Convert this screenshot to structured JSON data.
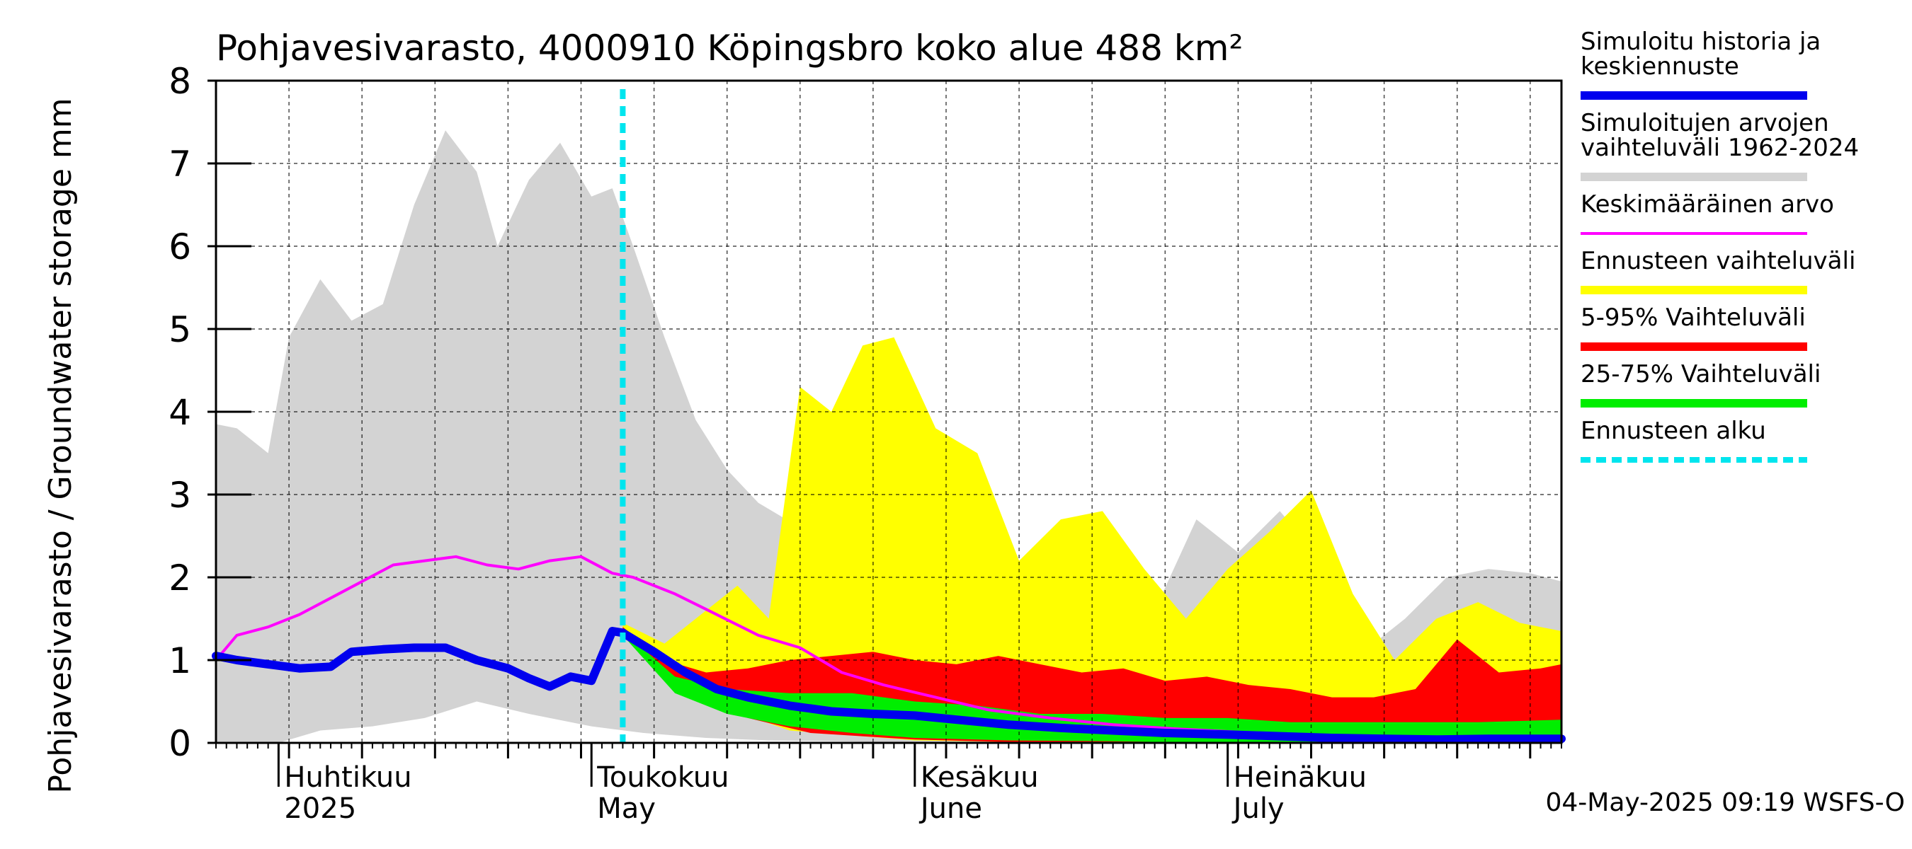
{
  "chart_data": {
    "type": "area",
    "title": "Pohjavesivarasto, 4000910 Köpingsbro koko alue 488 km²",
    "ylabel": "Pohjavesivarasto / Groundwater storage   mm",
    "ylim": [
      0,
      8
    ],
    "yticks": [
      "0",
      "1",
      "2",
      "3",
      "4",
      "5",
      "6",
      "7",
      "8"
    ],
    "grid": true,
    "legend_position": "right",
    "footer": "04-May-2025 09:19 WSFS-O",
    "colors": {
      "history": "#0000ee",
      "range_hist": "#d3d3d3",
      "mean": "#ff00ff",
      "forecast_range": "#ffff00",
      "p5_95": "#ff0000",
      "p25_75": "#00ee00",
      "forecast_start": "#00e5ee"
    },
    "x_months": [
      {
        "label": "Huhtikuu",
        "sublabel": "2025",
        "date": "2025-04-01"
      },
      {
        "label": "Toukokuu",
        "sublabel": "May",
        "date": "2025-05-01"
      },
      {
        "label": "Kesäkuu",
        "sublabel": "June",
        "date": "2025-06-01"
      },
      {
        "label": "Heinäkuu",
        "sublabel": "July",
        "date": "2025-07-01"
      }
    ],
    "x_start": "2025-03-26",
    "x_end": "2025-08-02",
    "forecast_start_date": "2025-05-04",
    "legend": [
      {
        "label": "Simuloitu historia ja keskiennuste",
        "key": "history",
        "style": "thick"
      },
      {
        "label": "Simuloitujen arvojen vaihteluväli 1962-2024",
        "key": "range_hist",
        "style": "thick"
      },
      {
        "label": "Keskimääräinen arvo",
        "key": "mean",
        "style": "thin"
      },
      {
        "label": "Ennusteen vaihteluväli",
        "key": "forecast_range",
        "style": "thick"
      },
      {
        "label": "5-95% Vaihteluväli",
        "key": "p5_95",
        "style": "thick"
      },
      {
        "label": "25-75% Vaihteluväli",
        "key": "p25_75",
        "style": "thick"
      },
      {
        "label": "Ennusteen alku",
        "key": "forecast_start",
        "style": "dashed"
      }
    ],
    "series": {
      "history": {
        "x": [
          "2025-03-26",
          "2025-03-28",
          "2025-03-31",
          "2025-04-03",
          "2025-04-06",
          "2025-04-08",
          "2025-04-11",
          "2025-04-14",
          "2025-04-17",
          "2025-04-20",
          "2025-04-23",
          "2025-04-25",
          "2025-04-27",
          "2025-04-29",
          "2025-05-01",
          "2025-05-03",
          "2025-05-04"
        ],
        "y": [
          1.05,
          1.0,
          0.95,
          0.9,
          0.92,
          1.1,
          1.13,
          1.15,
          1.15,
          1.0,
          0.9,
          0.78,
          0.68,
          0.8,
          0.75,
          1.35,
          1.33
        ]
      },
      "median_forecast": {
        "x": [
          "2025-05-04",
          "2025-05-07",
          "2025-05-10",
          "2025-05-13",
          "2025-05-16",
          "2025-05-20",
          "2025-05-24",
          "2025-05-28",
          "2025-06-01",
          "2025-06-05",
          "2025-06-10",
          "2025-06-15",
          "2025-06-20",
          "2025-06-25",
          "2025-07-01",
          "2025-07-06",
          "2025-07-11",
          "2025-07-16",
          "2025-07-21",
          "2025-07-26",
          "2025-07-31",
          "2025-08-02"
        ],
        "y": [
          1.33,
          1.1,
          0.85,
          0.65,
          0.55,
          0.45,
          0.38,
          0.35,
          0.33,
          0.28,
          0.22,
          0.18,
          0.15,
          0.12,
          0.1,
          0.08,
          0.06,
          0.05,
          0.04,
          0.05,
          0.05,
          0.05
        ]
      },
      "mean": {
        "x": [
          "2025-03-26",
          "2025-03-28",
          "2025-03-31",
          "2025-04-03",
          "2025-04-06",
          "2025-04-09",
          "2025-04-12",
          "2025-04-15",
          "2025-04-18",
          "2025-04-21",
          "2025-04-24",
          "2025-04-27",
          "2025-04-30",
          "2025-05-03",
          "2025-05-05",
          "2025-05-09",
          "2025-05-13",
          "2025-05-17",
          "2025-05-21",
          "2025-05-25",
          "2025-05-29",
          "2025-06-03",
          "2025-06-08",
          "2025-06-14",
          "2025-06-20",
          "2025-06-26",
          "2025-07-02",
          "2025-07-08",
          "2025-07-14",
          "2025-07-20",
          "2025-07-26",
          "2025-08-02"
        ],
        "y": [
          1.0,
          1.3,
          1.4,
          1.55,
          1.75,
          1.95,
          2.15,
          2.2,
          2.25,
          2.15,
          2.1,
          2.2,
          2.25,
          2.05,
          2.0,
          1.8,
          1.55,
          1.3,
          1.15,
          0.85,
          0.7,
          0.55,
          0.4,
          0.3,
          0.22,
          0.17,
          0.13,
          0.1,
          0.08,
          0.06,
          0.05,
          0.05
        ]
      },
      "range_hist_upper": {
        "x": [
          "2025-03-26",
          "2025-03-28",
          "2025-03-31",
          "2025-04-02",
          "2025-04-05",
          "2025-04-08",
          "2025-04-11",
          "2025-04-14",
          "2025-04-17",
          "2025-04-20",
          "2025-04-22",
          "2025-04-25",
          "2025-04-28",
          "2025-05-01",
          "2025-05-03",
          "2025-05-05",
          "2025-05-08",
          "2025-05-11",
          "2025-05-14",
          "2025-05-17",
          "2025-05-21",
          "2025-05-25",
          "2025-05-29",
          "2025-06-02",
          "2025-06-05",
          "2025-06-08",
          "2025-06-12",
          "2025-06-16",
          "2025-06-20",
          "2025-06-24",
          "2025-06-28",
          "2025-07-02",
          "2025-07-06",
          "2025-07-10",
          "2025-07-14",
          "2025-07-18",
          "2025-07-22",
          "2025-07-26",
          "2025-07-30",
          "2025-08-02"
        ],
        "y": [
          3.85,
          3.8,
          3.5,
          4.9,
          5.6,
          5.1,
          5.3,
          6.5,
          7.4,
          6.9,
          6.0,
          6.8,
          7.25,
          6.6,
          6.7,
          6.0,
          4.9,
          3.9,
          3.3,
          2.9,
          2.6,
          2.4,
          2.1,
          1.9,
          1.5,
          1.3,
          2.0,
          2.2,
          1.8,
          1.6,
          2.7,
          2.3,
          2.8,
          2.2,
          1.1,
          1.5,
          2.0,
          2.1,
          2.05,
          1.95
        ]
      },
      "range_hist_lower": {
        "x": [
          "2025-03-26",
          "2025-04-01",
          "2025-04-05",
          "2025-04-10",
          "2025-04-15",
          "2025-04-20",
          "2025-04-25",
          "2025-05-01",
          "2025-05-06",
          "2025-05-12",
          "2025-05-18",
          "2025-05-25",
          "2025-06-01",
          "2025-06-10",
          "2025-06-20",
          "2025-07-01",
          "2025-07-15",
          "2025-08-02"
        ],
        "y": [
          0.0,
          0.0,
          0.15,
          0.2,
          0.3,
          0.5,
          0.35,
          0.2,
          0.12,
          0.06,
          0.03,
          0.02,
          0.0,
          0.0,
          0.0,
          0.0,
          0.0,
          0.0
        ]
      },
      "forecast_range_upper": {
        "x": [
          "2025-05-04",
          "2025-05-08",
          "2025-05-12",
          "2025-05-15",
          "2025-05-18",
          "2025-05-21",
          "2025-05-24",
          "2025-05-27",
          "2025-05-30",
          "2025-06-03",
          "2025-06-07",
          "2025-06-11",
          "2025-06-15",
          "2025-06-19",
          "2025-06-23",
          "2025-06-27",
          "2025-07-01",
          "2025-07-05",
          "2025-07-09",
          "2025-07-13",
          "2025-07-17",
          "2025-07-21",
          "2025-07-25",
          "2025-07-29",
          "2025-08-02"
        ],
        "y": [
          1.45,
          1.2,
          1.6,
          1.9,
          1.5,
          4.3,
          4.0,
          4.8,
          4.9,
          3.8,
          3.5,
          2.2,
          2.7,
          2.8,
          2.1,
          1.5,
          2.1,
          2.55,
          3.05,
          1.8,
          1.0,
          1.5,
          1.7,
          1.45,
          1.35
        ]
      },
      "forecast_range_lower": {
        "x": [
          "2025-05-04",
          "2025-05-12",
          "2025-05-20",
          "2025-06-01",
          "2025-06-15",
          "2025-07-01",
          "2025-08-02"
        ],
        "y": [
          1.33,
          0.5,
          0.15,
          0.03,
          0.0,
          0.0,
          0.0
        ]
      },
      "p5_95_upper": {
        "x": [
          "2025-05-04",
          "2025-05-08",
          "2025-05-12",
          "2025-05-16",
          "2025-05-20",
          "2025-05-24",
          "2025-05-28",
          "2025-06-01",
          "2025-06-05",
          "2025-06-09",
          "2025-06-13",
          "2025-06-17",
          "2025-06-21",
          "2025-06-25",
          "2025-06-29",
          "2025-07-03",
          "2025-07-07",
          "2025-07-11",
          "2025-07-15",
          "2025-07-19",
          "2025-07-23",
          "2025-07-27",
          "2025-07-31",
          "2025-08-02"
        ],
        "y": [
          1.4,
          1.0,
          0.85,
          0.9,
          1.0,
          1.05,
          1.1,
          1.0,
          0.95,
          1.05,
          0.95,
          0.85,
          0.9,
          0.75,
          0.8,
          0.7,
          0.65,
          0.55,
          0.55,
          0.65,
          1.25,
          0.85,
          0.9,
          0.95
        ]
      },
      "p5_95_lower": {
        "x": [
          "2025-05-04",
          "2025-05-10",
          "2025-05-16",
          "2025-05-22",
          "2025-06-01",
          "2025-06-10",
          "2025-08-02"
        ],
        "y": [
          1.3,
          0.6,
          0.3,
          0.12,
          0.04,
          0.01,
          0.0
        ]
      },
      "p25_75_upper": {
        "x": [
          "2025-05-04",
          "2025-05-09",
          "2025-05-14",
          "2025-05-20",
          "2025-05-26",
          "2025-06-01",
          "2025-06-07",
          "2025-06-13",
          "2025-06-19",
          "2025-06-25",
          "2025-07-01",
          "2025-07-07",
          "2025-07-13",
          "2025-07-19",
          "2025-07-25",
          "2025-08-02"
        ],
        "y": [
          1.35,
          0.8,
          0.65,
          0.6,
          0.6,
          0.5,
          0.45,
          0.35,
          0.35,
          0.3,
          0.3,
          0.25,
          0.25,
          0.25,
          0.25,
          0.28
        ]
      },
      "p25_75_lower": {
        "x": [
          "2025-05-04",
          "2025-05-09",
          "2025-05-14",
          "2025-05-20",
          "2025-05-26",
          "2025-06-01",
          "2025-06-10",
          "2025-06-20",
          "2025-07-01",
          "2025-07-15",
          "2025-08-02"
        ],
        "y": [
          1.3,
          0.6,
          0.35,
          0.2,
          0.12,
          0.06,
          0.03,
          0.02,
          0.0,
          0.0,
          0.0
        ]
      }
    }
  }
}
